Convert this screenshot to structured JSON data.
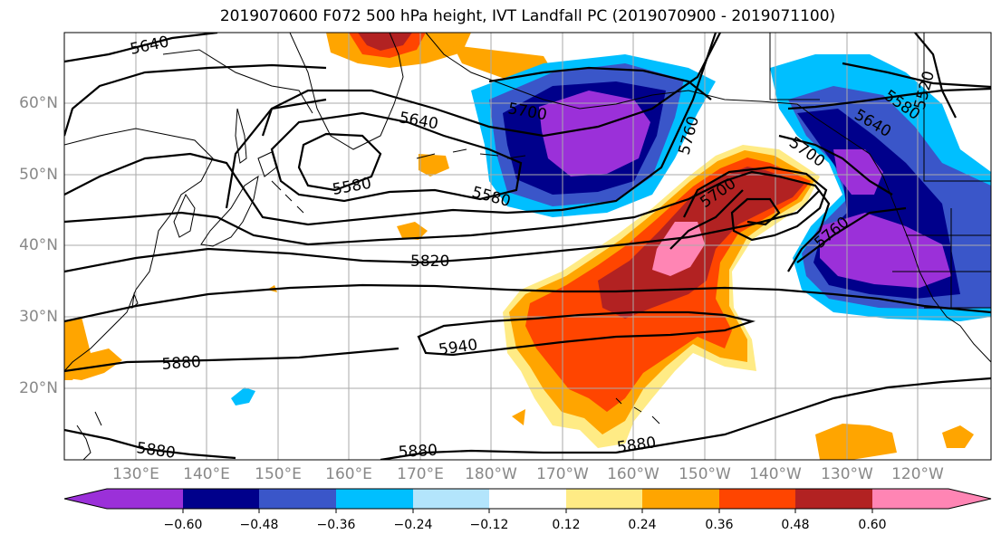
{
  "title": "2019070600 F072 500 hPa height, IVT Landfall PC (2019070900 - 2019071100)",
  "lat_labels": [
    "60°N",
    "50°N",
    "40°N",
    "30°N",
    "20°N"
  ],
  "lon_labels": [
    "130°E",
    "140°E",
    "150°E",
    "160°E",
    "170°E",
    "180°W",
    "170°W",
    "160°W",
    "150°W",
    "140°W",
    "130°W",
    "120°W"
  ],
  "contour_labels": [
    "5640",
    "5640",
    "5700",
    "5580",
    "5580",
    "5760",
    "5580",
    "5640",
    "5520",
    "5700",
    "5700",
    "5760",
    "5820",
    "5940",
    "5880",
    "5880",
    "5880",
    "5880"
  ],
  "colorbar": {
    "ticks": [
      "−0.60",
      "−0.48",
      "−0.36",
      "−0.24",
      "−0.12",
      "0.12",
      "0.24",
      "0.36",
      "0.48",
      "0.60"
    ],
    "colors": [
      "#9b30d9",
      "#00008b",
      "#3a56c9",
      "#00bfff",
      "#b3e5fc",
      "#ffffff",
      "#ffeb85",
      "#ffa500",
      "#ff4500",
      "#b22222",
      "#ff85b4"
    ]
  }
}
